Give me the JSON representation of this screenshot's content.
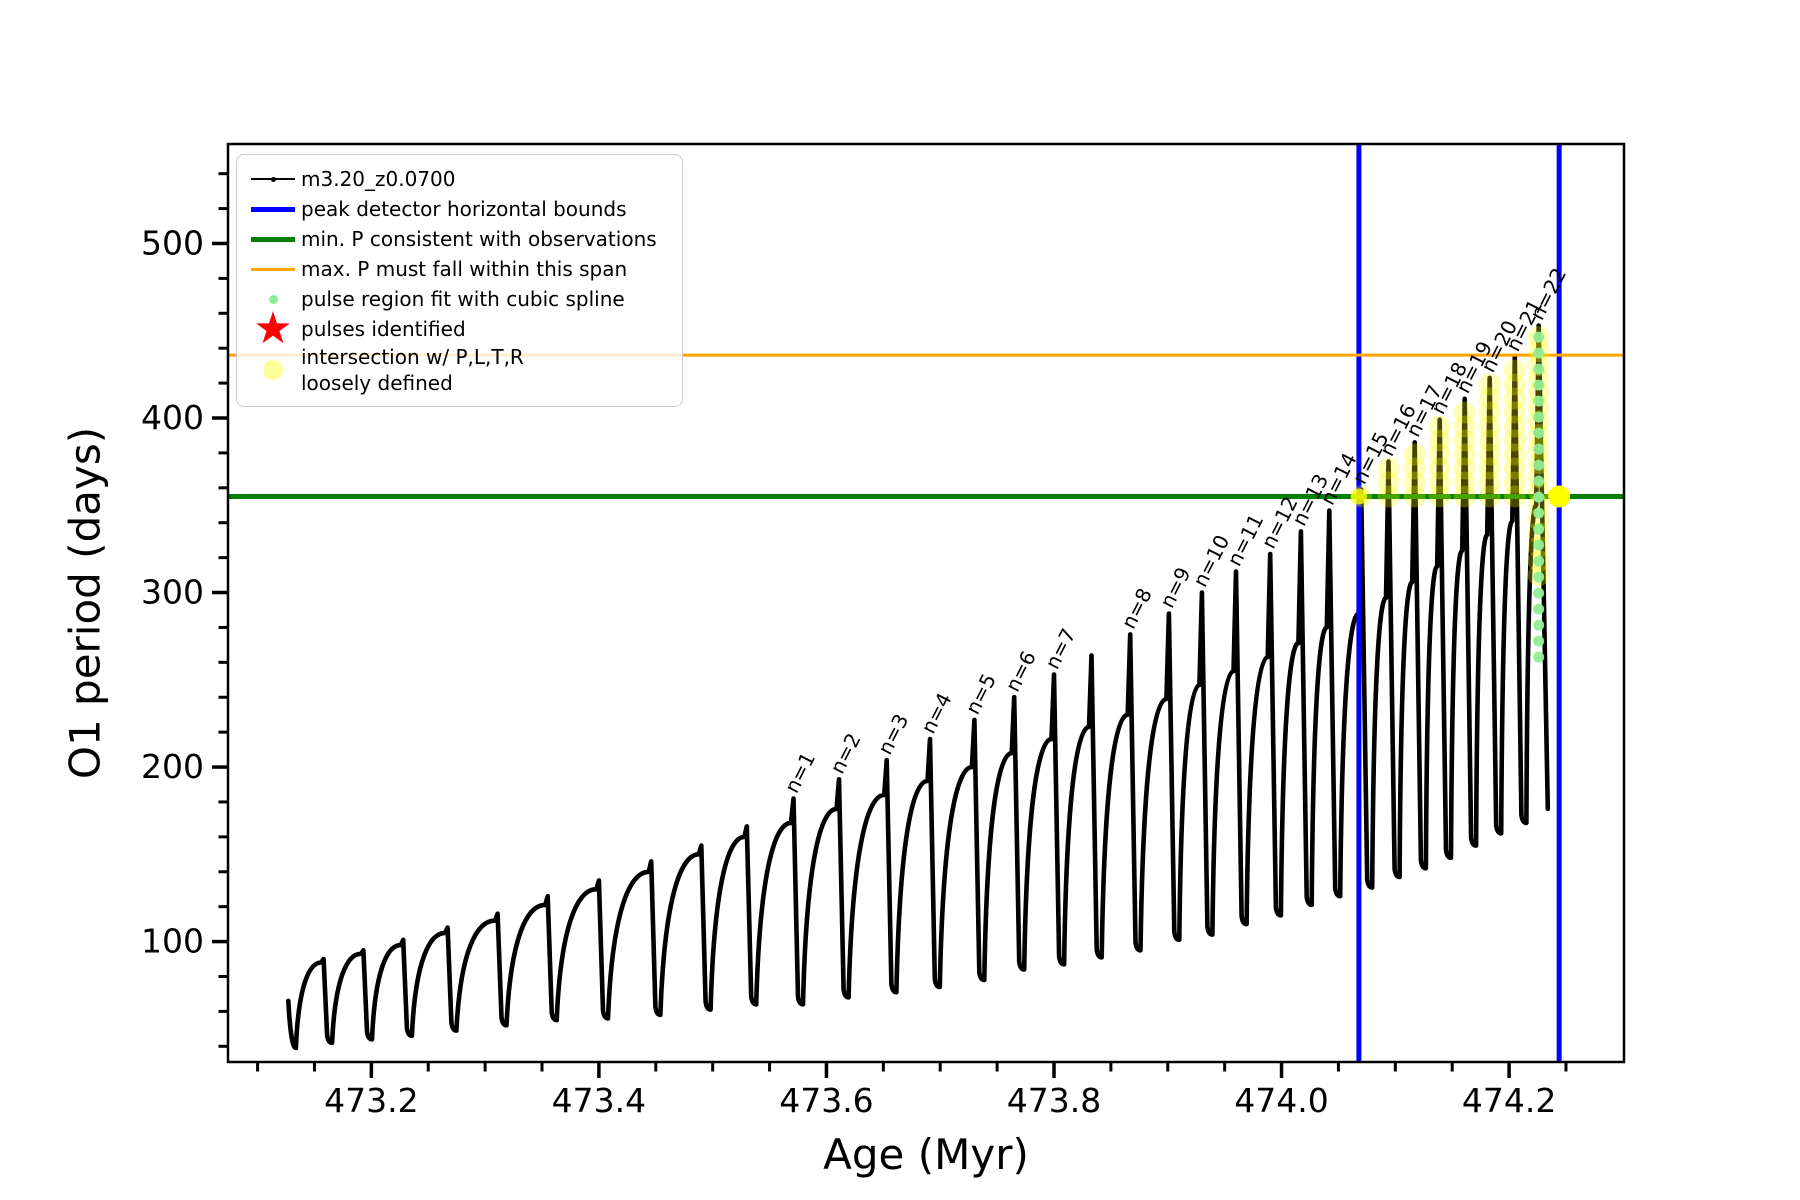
{
  "legend": {
    "entries": [
      {
        "handle": "series-line",
        "color": "#000000",
        "label": "m3.20_z0.0700"
      },
      {
        "handle": "thick-line",
        "color": "#0000ff",
        "label": "peak detector horizontal bounds"
      },
      {
        "handle": "thick-line",
        "color": "#008000",
        "label": "min. P consistent with observations"
      },
      {
        "handle": "thin-line",
        "color": "#ffa500",
        "label": "max. P must fall within this span"
      },
      {
        "handle": "small-dot",
        "color": "#90ee90",
        "label": "pulse region fit with cubic spline"
      },
      {
        "handle": "star",
        "color": "#ff0000",
        "label": "pulses identified"
      },
      {
        "handle": "big-dot",
        "color": "rgba(255,255,0,0.4)",
        "label": "intersection w/ P,L,T,R\nloosely defined"
      }
    ]
  },
  "chart_data": {
    "type": "line",
    "title": "",
    "xlabel": "Age (Myr)",
    "ylabel": "O1 period (days)",
    "series_name": "m3.20_z0.0700",
    "xlim": [
      473.074,
      474.301
    ],
    "ylim": [
      31,
      557
    ],
    "x_major_ticks": [
      473.2,
      473.4,
      473.6,
      473.8,
      474.0,
      474.2
    ],
    "x_tick_labels": [
      "473.2",
      "473.4",
      "473.6",
      "473.8",
      "474.0",
      "474.2"
    ],
    "x_minor_step": 0.05,
    "y_major_ticks": [
      100,
      200,
      300,
      400,
      500
    ],
    "y_tick_labels": [
      "100",
      "200",
      "300",
      "400",
      "500"
    ],
    "y_minor_step": 20,
    "grid": false,
    "legend_position": "upper left",
    "reference_lines": {
      "peak_detector_bounds_x": [
        474.068,
        474.244
      ],
      "min_P_consistent_days": 355,
      "max_P_span_days": 436
    },
    "data_start": {
      "age": 473.127,
      "value": 66,
      "first_valley_age": 473.131,
      "first_valley_value": 39
    },
    "cycles": [
      {
        "label": null,
        "age": 473.158,
        "crest": 88,
        "tip": 90,
        "valley_after": 42
      },
      {
        "label": null,
        "age": 473.193,
        "crest": 93,
        "tip": 95,
        "valley_after": 44
      },
      {
        "label": null,
        "age": 473.228,
        "crest": 98,
        "tip": 101,
        "valley_after": 46
      },
      {
        "label": null,
        "age": 473.267,
        "crest": 105,
        "tip": 108,
        "valley_after": 49
      },
      {
        "label": null,
        "age": 473.311,
        "crest": 112,
        "tip": 116,
        "valley_after": 52
      },
      {
        "label": null,
        "age": 473.355,
        "crest": 121,
        "tip": 126,
        "valley_after": 55
      },
      {
        "label": null,
        "age": 473.4,
        "crest": 130,
        "tip": 135,
        "valley_after": 56
      },
      {
        "label": null,
        "age": 473.446,
        "crest": 140,
        "tip": 146,
        "valley_after": 58
      },
      {
        "label": null,
        "age": 473.49,
        "crest": 150,
        "tip": 155,
        "valley_after": 61
      },
      {
        "label": null,
        "age": 473.53,
        "crest": 160,
        "tip": 166,
        "valley_after": 64
      },
      {
        "label": "n=1",
        "age": 473.571,
        "crest": 168,
        "tip": 182,
        "valley_after": 64
      },
      {
        "label": "n=2",
        "age": 473.611,
        "crest": 176,
        "tip": 193,
        "valley_after": 68
      },
      {
        "label": "n=3",
        "age": 473.653,
        "crest": 184,
        "tip": 204,
        "valley_after": 71
      },
      {
        "label": "n=4",
        "age": 473.691,
        "crest": 192,
        "tip": 216,
        "valley_after": 74
      },
      {
        "label": "n=5",
        "age": 473.73,
        "crest": 200,
        "tip": 227,
        "valley_after": 78
      },
      {
        "label": "n=6",
        "age": 473.765,
        "crest": 208,
        "tip": 240,
        "valley_after": 84
      },
      {
        "label": "n=7",
        "age": 473.8,
        "crest": 216,
        "tip": 253,
        "valley_after": 87
      },
      {
        "label": null,
        "age": 473.833,
        "crest": 223,
        "tip": 264,
        "valley_after": 91
      },
      {
        "label": "n=8",
        "age": 473.867,
        "crest": 230,
        "tip": 276,
        "valley_after": 95
      },
      {
        "label": "n=9",
        "age": 473.901,
        "crest": 239,
        "tip": 288,
        "valley_after": 101
      },
      {
        "label": "n=10",
        "age": 473.93,
        "crest": 247,
        "tip": 300,
        "valley_after": 104
      },
      {
        "label": "n=11",
        "age": 473.96,
        "crest": 255,
        "tip": 312,
        "valley_after": 110
      },
      {
        "label": "n=12",
        "age": 473.99,
        "crest": 263,
        "tip": 322,
        "valley_after": 115
      },
      {
        "label": "n=13",
        "age": 474.017,
        "crest": 271,
        "tip": 335,
        "valley_after": 121
      },
      {
        "label": "n=14",
        "age": 474.042,
        "crest": 280,
        "tip": 347,
        "valley_after": 126
      },
      {
        "label": "n=15",
        "age": 474.07,
        "crest": 288,
        "tip": 359,
        "valley_after": 131
      },
      {
        "label": "n=16",
        "age": 474.094,
        "crest": 297,
        "tip": 375,
        "valley_after": 137
      },
      {
        "label": "n=17",
        "age": 474.117,
        "crest": 306,
        "tip": 386,
        "valley_after": 142
      },
      {
        "label": "n=18",
        "age": 474.139,
        "crest": 315,
        "tip": 399,
        "valley_after": 148
      },
      {
        "label": "n=19",
        "age": 474.161,
        "crest": 324,
        "tip": 411,
        "valley_after": 155
      },
      {
        "label": "n=20",
        "age": 474.183,
        "crest": 333,
        "tip": 423,
        "valley_after": 162
      },
      {
        "label": "n=21",
        "age": 474.205,
        "crest": 341,
        "tip": 435,
        "valley_after": 168
      },
      {
        "label": "n=22",
        "age": 474.226,
        "crest": 350,
        "tip": 453,
        "valley_after": 174
      }
    ],
    "end_of_data": {
      "age": 474.234,
      "value": 176
    },
    "spline_fit_column": {
      "age": 474.226,
      "from_days": 263,
      "to_days": 453
    },
    "halo_columns": {
      "min_label": "n=15",
      "from_days_default": 355,
      "n22_from_days": 310
    },
    "intersection_points": [
      {
        "age": 474.068,
        "days": 355,
        "size": "small"
      },
      {
        "age": 474.244,
        "days": 355,
        "size": "large"
      }
    ],
    "colors": {
      "series": "#000000",
      "peak_bounds": "#0000ff",
      "min_p": "#008000",
      "max_p": "#ffa500",
      "spline": "#90ee90",
      "pulses": "#ff0000",
      "intersection": "#ffff00"
    }
  }
}
